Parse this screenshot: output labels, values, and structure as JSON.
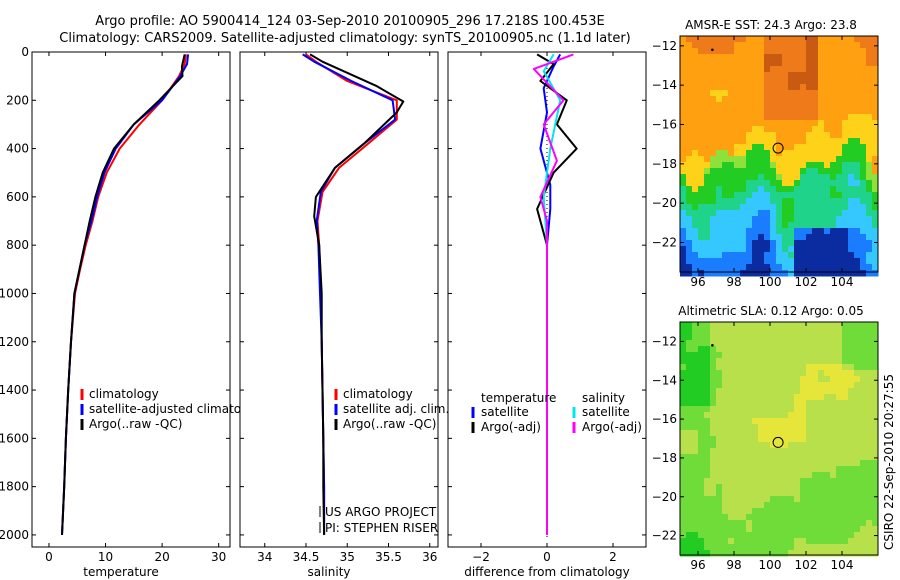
{
  "header": {
    "line1": "Argo profile: AO 5900414_124 03-Sep-2010 20100905_296 17.218S 100.453E",
    "line2": "Climatology: CARS2009. Satellite-adjusted climatology: synTS_20100905.nc (1.1d later)"
  },
  "side_stamp": "CSIRO 22-Sep-2010 20:27:55",
  "colors": {
    "climatology": "#ff0000",
    "satellite": "#0000ff",
    "argo": "#000000",
    "salinity_satellite": "#00e5ee",
    "salinity_argo": "#ff00ff"
  },
  "chart_data": [
    {
      "type": "line",
      "xlabel": "temperature",
      "xlim": [
        -3,
        32
      ],
      "ylim": [
        0,
        2050
      ],
      "y_reversed": true,
      "xticks": [
        0,
        10,
        20,
        30
      ],
      "yticks": [
        0,
        200,
        400,
        600,
        800,
        1000,
        1200,
        1400,
        1600,
        1800,
        2000
      ],
      "legend": [
        "climatology",
        "satellite-adjusted climatology",
        "Argo(..raw -QC)"
      ],
      "series": [
        {
          "name": "climatology",
          "color": "#ff0000",
          "x": [
            24.2,
            24.0,
            23.0,
            20.0,
            16.0,
            12.5,
            10.2,
            8.7,
            7.7,
            6.5,
            5.5,
            4.6,
            3.9,
            3.4,
            3.0,
            2.7,
            2.5,
            2.3
          ],
          "y": [
            10,
            50,
            100,
            200,
            300,
            400,
            500,
            600,
            700,
            800,
            900,
            1000,
            1200,
            1400,
            1600,
            1800,
            1900,
            2000
          ]
        },
        {
          "name": "satellite-adjusted climatology",
          "color": "#0000ff",
          "x": [
            24.6,
            24.4,
            23.2,
            20.0,
            15.0,
            11.8,
            9.8,
            8.5,
            7.5,
            6.3,
            5.4,
            4.5,
            3.9,
            3.4,
            3.0,
            2.7,
            2.5,
            2.3
          ],
          "y": [
            10,
            50,
            100,
            200,
            300,
            400,
            500,
            600,
            700,
            800,
            900,
            1000,
            1200,
            1400,
            1600,
            1800,
            1900,
            2000
          ]
        },
        {
          "name": "Argo(..raw -QC)",
          "color": "#000000",
          "x": [
            24.0,
            23.5,
            23.6,
            19.5,
            15.0,
            11.5,
            9.5,
            8.2,
            7.2,
            6.3,
            5.4,
            4.5,
            3.9,
            3.4,
            3.0,
            2.7,
            2.5,
            2.3
          ],
          "y": [
            10,
            60,
            100,
            200,
            300,
            400,
            500,
            600,
            700,
            800,
            900,
            1000,
            1200,
            1400,
            1600,
            1800,
            1900,
            2000
          ]
        }
      ]
    },
    {
      "type": "line",
      "xlabel": "salinity",
      "xlim": [
        33.7,
        36.1
      ],
      "ylim": [
        0,
        2050
      ],
      "y_reversed": true,
      "xticks": [
        34,
        34.5,
        35,
        35.5,
        36
      ],
      "xticklabels": [
        "34",
        "34.5",
        "35",
        "35.5",
        "36"
      ],
      "legend": [
        "climatology",
        "satellite adj. clim.",
        "Argo(..raw -QC)"
      ],
      "annotation": [
        "US ARGO PROJECT",
        "PI: STEPHEN RISER"
      ],
      "series": [
        {
          "name": "climatology",
          "color": "#ff0000",
          "x": [
            34.5,
            34.62,
            35.0,
            35.6,
            35.6,
            35.25,
            34.9,
            34.7,
            34.64,
            34.66,
            34.68,
            34.69,
            34.7,
            34.71,
            34.72,
            34.72
          ],
          "y": [
            10,
            40,
            120,
            200,
            280,
            380,
            480,
            580,
            700,
            800,
            1000,
            1200,
            1400,
            1600,
            1800,
            2000
          ]
        },
        {
          "name": "satellite adj. clim.",
          "color": "#0000ff",
          "x": [
            34.46,
            34.6,
            35.05,
            35.55,
            35.58,
            35.2,
            34.85,
            34.68,
            34.63,
            34.65,
            34.67,
            34.69,
            34.7,
            34.71,
            34.72,
            34.72
          ],
          "y": [
            10,
            40,
            120,
            200,
            280,
            380,
            480,
            580,
            700,
            800,
            1000,
            1200,
            1400,
            1600,
            1800,
            2000
          ]
        },
        {
          "name": "Argo(..raw -QC)",
          "color": "#000000",
          "x": [
            34.55,
            34.7,
            35.35,
            35.68,
            35.6,
            35.2,
            34.85,
            34.62,
            34.6,
            34.66,
            34.69,
            34.69,
            34.7,
            34.71,
            34.71,
            34.72
          ],
          "y": [
            10,
            40,
            140,
            205,
            250,
            380,
            480,
            600,
            680,
            800,
            1000,
            1200,
            1400,
            1600,
            1800,
            2000
          ]
        }
      ]
    },
    {
      "type": "line",
      "xlabel": "difference from climatology",
      "xlim": [
        -3,
        3
      ],
      "ylim": [
        0,
        2050
      ],
      "y_reversed": true,
      "xticks": [
        -2,
        0,
        2
      ],
      "legend_groups": [
        {
          "heading": "temperature",
          "items": [
            "satellite",
            "Argo(-adj)"
          ]
        },
        {
          "heading": "salinity",
          "items": [
            "satellite",
            "Argo(-adj)"
          ]
        }
      ],
      "series": [
        {
          "name": "temperature satellite",
          "color": "#0000ff",
          "x": [
            0.4,
            0.2,
            -0.1,
            0.0,
            -0.2,
            0.1,
            0.1,
            0.0,
            0.0,
            0.0,
            0.0,
            0.0
          ],
          "y": [
            10,
            60,
            150,
            250,
            400,
            550,
            650,
            800,
            1000,
            1400,
            1800,
            2000
          ]
        },
        {
          "name": "temperature Argo(-adj)",
          "color": "#000000",
          "x": [
            -0.3,
            0.2,
            -0.2,
            0.6,
            0.3,
            0.9,
            0.2,
            -0.3,
            0.0,
            0.0,
            0.0,
            0.0,
            0.0
          ],
          "y": [
            10,
            50,
            120,
            200,
            300,
            400,
            500,
            650,
            800,
            1000,
            1400,
            1800,
            2000
          ]
        },
        {
          "name": "salinity satellite",
          "color": "#00e5ee",
          "x": [
            0.2,
            -0.1,
            0.4,
            0.1,
            -0.1,
            0.0,
            0.0,
            0.0,
            0.0,
            0.0
          ],
          "y": [
            10,
            80,
            200,
            400,
            600,
            800,
            1000,
            1400,
            1800,
            2000
          ]
        },
        {
          "name": "salinity Argo(-adj)",
          "color": "#ff00ff",
          "x": [
            0.8,
            -0.4,
            0.5,
            -0.1,
            0.3,
            -0.2,
            0.0,
            0.0,
            0.0,
            0.0,
            0.0
          ],
          "y": [
            10,
            70,
            200,
            300,
            450,
            600,
            700,
            900,
            1400,
            1800,
            2000
          ]
        }
      ]
    },
    {
      "type": "heatmap",
      "title": "AMSR-E SST: 24.3 Argo: 23.8",
      "xlim": [
        95,
        106
      ],
      "ylim": [
        -23.5,
        -11.5
      ],
      "xticks": [
        96,
        98,
        100,
        102,
        104
      ],
      "yticks": [
        -12,
        -14,
        -16,
        -18,
        -20,
        -22
      ],
      "marker": {
        "x": 100.45,
        "y": -17.2
      },
      "colormap": [
        "#0a2ca0",
        "#1a7cff",
        "#35c8ff",
        "#1fd38a",
        "#22cc22",
        "#8ee03a",
        "#ffd21a",
        "#ffa010",
        "#ee7a1a",
        "#c85a12"
      ]
    },
    {
      "type": "heatmap",
      "title": "Altimetric SLA: 0.12 Argo: 0.05",
      "xlim": [
        95,
        106
      ],
      "ylim": [
        -23,
        -11
      ],
      "xticks": [
        96,
        98,
        100,
        102,
        104
      ],
      "yticks": [
        -12,
        -14,
        -16,
        -18,
        -20,
        -22
      ],
      "marker": {
        "x": 100.45,
        "y": -17.2
      },
      "colormap": [
        "#22cc22",
        "#6fdc3a",
        "#b8e04a",
        "#e6e63a",
        "#f4dc4a"
      ]
    }
  ]
}
